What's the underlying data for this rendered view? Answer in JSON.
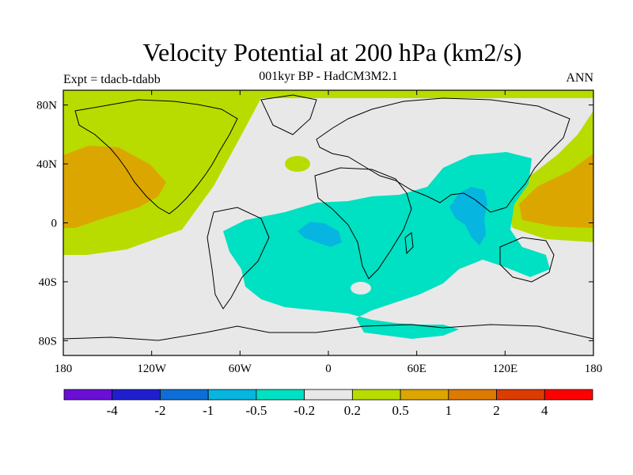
{
  "title": "Velocity Potential at 200 hPa (km2/s)",
  "subtitle": "001kyr BP - HadCM3M2.1",
  "experiment_label": "Expt = tdacb-tdabb",
  "period_label": "ANN",
  "axes": {
    "x_ticks": [
      {
        "value": -180,
        "label": "180"
      },
      {
        "value": -120,
        "label": "120W"
      },
      {
        "value": -60,
        "label": "60W"
      },
      {
        "value": 0,
        "label": "0"
      },
      {
        "value": 60,
        "label": "60E"
      },
      {
        "value": 120,
        "label": "120E"
      },
      {
        "value": 180,
        "label": "180"
      }
    ],
    "y_ticks": [
      {
        "value": 80,
        "label": "80N"
      },
      {
        "value": 40,
        "label": "40N"
      },
      {
        "value": 0,
        "label": "0"
      },
      {
        "value": -40,
        "label": "40S"
      },
      {
        "value": -80,
        "label": "80S"
      }
    ],
    "lon_range": [
      -180,
      180
    ],
    "lat_range": [
      -90,
      90
    ]
  },
  "colorbar": {
    "colors": [
      "#6b0fd6",
      "#1f1fd0",
      "#0d6fd6",
      "#06b5e0",
      "#00e0c2",
      "#e8e8e8",
      "#b8dc00",
      "#dca600",
      "#dd7a00",
      "#dd3c00",
      "#ff0000"
    ],
    "boundary_labels": [
      "-4",
      "-2",
      "-1",
      "-0.5",
      "-0.2",
      "0.2",
      "0.5",
      "1",
      "2",
      "4"
    ]
  },
  "fields": {
    "background_color": "#e8e8e8",
    "positive_light": "#b8dc00",
    "positive_strong": "#dca600",
    "negative_light": "#00e0c2",
    "negative_strong": "#06b5e0",
    "coastline_color": "#000000"
  }
}
